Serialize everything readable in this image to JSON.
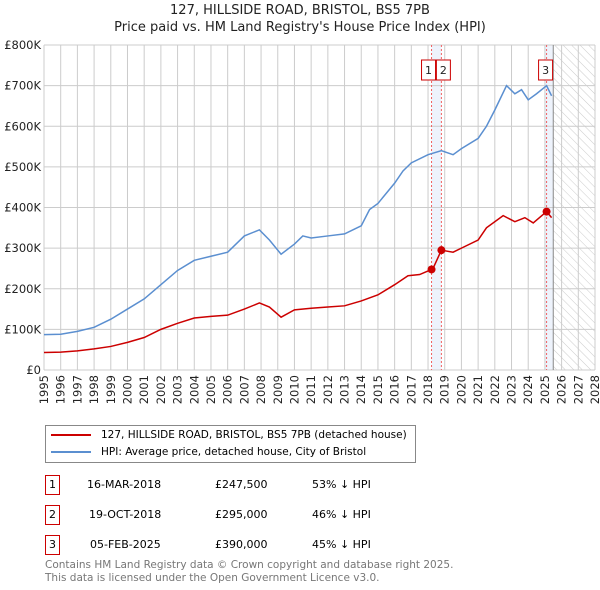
{
  "chart_data": {
    "type": "line",
    "title": "127, HILLSIDE ROAD, BRISTOL, BS5 7PB",
    "subtitle": "Price paid vs. HM Land Registry's House Price Index (HPI)",
    "xlim": [
      1995,
      2028
    ],
    "ylim": [
      0,
      800000
    ],
    "x_ticks": [
      "1995",
      "1996",
      "1997",
      "1998",
      "1999",
      "2000",
      "2001",
      "2002",
      "2003",
      "2004",
      "2005",
      "2006",
      "2007",
      "2008",
      "2009",
      "2010",
      "2011",
      "2012",
      "2013",
      "2014",
      "2015",
      "2016",
      "2017",
      "2018",
      "2019",
      "2020",
      "2021",
      "2022",
      "2023",
      "2024",
      "2025",
      "2026",
      "2027",
      "2028"
    ],
    "y_ticks": [
      {
        "v": 0,
        "label": "£0"
      },
      {
        "v": 100000,
        "label": "£100K"
      },
      {
        "v": 200000,
        "label": "£200K"
      },
      {
        "v": 300000,
        "label": "£300K"
      },
      {
        "v": 400000,
        "label": "£400K"
      },
      {
        "v": 500000,
        "label": "£500K"
      },
      {
        "v": 600000,
        "label": "£600K"
      },
      {
        "v": 700000,
        "label": "£700K"
      },
      {
        "v": 800000,
        "label": "£800K"
      }
    ],
    "grid": true,
    "forecast_from": 2025.5,
    "series": [
      {
        "name": "127, HILLSIDE ROAD, BRISTOL, BS5 7PB (detached house)",
        "color": "#cc0000",
        "x": [
          1995,
          1996,
          1997,
          1998,
          1999,
          2000,
          2001,
          2002,
          2003,
          2004,
          2005,
          2006,
          2007,
          2007.9,
          2008.5,
          2009.2,
          2010,
          2011,
          2012,
          2013,
          2014,
          2015,
          2016,
          2016.8,
          2017.5,
          2018.21,
          2018.3,
          2018.8,
          2019.5,
          2020,
          2021,
          2021.5,
          2022.5,
          2023.2,
          2023.8,
          2024.3,
          2025.1,
          2025.4
        ],
        "y": [
          43000,
          44000,
          47000,
          52000,
          58000,
          68000,
          80000,
          100000,
          115000,
          128000,
          132000,
          135000,
          150000,
          165000,
          155000,
          130000,
          148000,
          152000,
          155000,
          158000,
          170000,
          185000,
          210000,
          232000,
          235000,
          247500,
          250000,
          295000,
          290000,
          300000,
          320000,
          350000,
          380000,
          365000,
          375000,
          362000,
          390000,
          375000
        ]
      },
      {
        "name": "HPI: Average price, detached house, City of Bristol",
        "color": "#5b8fd0",
        "x": [
          1995,
          1996,
          1997,
          1998,
          1999,
          2000,
          2001,
          2002,
          2003,
          2004,
          2005,
          2006,
          2007,
          2007.9,
          2008.5,
          2009.2,
          2010,
          2010.5,
          2011,
          2012,
          2013,
          2014,
          2014.5,
          2015,
          2016,
          2016.5,
          2017,
          2018,
          2018.8,
          2019.5,
          2020,
          2021,
          2021.5,
          2022,
          2022.7,
          2023.2,
          2023.6,
          2024,
          2024.5,
          2025.1,
          2025.4
        ],
        "y": [
          87000,
          88000,
          95000,
          105000,
          125000,
          150000,
          175000,
          210000,
          245000,
          270000,
          280000,
          290000,
          330000,
          345000,
          320000,
          285000,
          310000,
          330000,
          325000,
          330000,
          335000,
          355000,
          395000,
          410000,
          460000,
          490000,
          510000,
          530000,
          540000,
          530000,
          545000,
          570000,
          600000,
          640000,
          700000,
          680000,
          690000,
          665000,
          680000,
          700000,
          675000
        ]
      }
    ],
    "sales": [
      {
        "id": "1",
        "date": "16-MAR-2018",
        "x": 2018.21,
        "price": "£247,500",
        "value": 247500,
        "hpi": "53% ↓ HPI"
      },
      {
        "id": "2",
        "date": "19-OCT-2018",
        "x": 2018.8,
        "price": "£295,000",
        "value": 295000,
        "hpi": "46% ↓ HPI"
      },
      {
        "id": "3",
        "date": "05-FEB-2025",
        "x": 2025.1,
        "price": "£390,000",
        "value": 390000,
        "hpi": "45% ↓ HPI"
      }
    ]
  },
  "footer": [
    "Contains HM Land Registry data © Crown copyright and database right 2025.",
    "This data is licensed under the Open Government Licence v3.0."
  ]
}
